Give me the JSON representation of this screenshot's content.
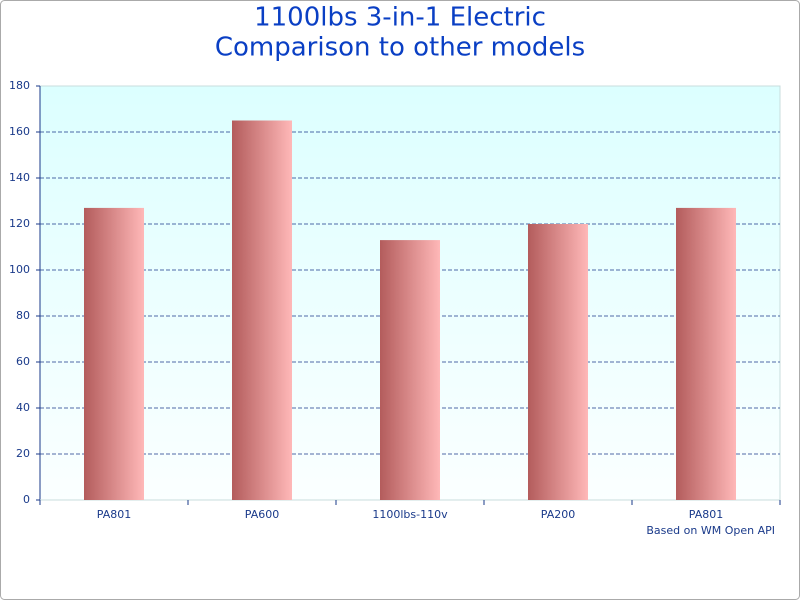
{
  "chart_data": {
    "type": "bar",
    "title": "1100lbs 3-in-1 Electric",
    "subtitle": "Comparison to other models",
    "categories": [
      "PA801",
      "PA600",
      "1100lbs-110v",
      "PA200",
      "PA801"
    ],
    "values": [
      127,
      165,
      113,
      120,
      127
    ],
    "color": "#b35c5c",
    "ylim": [
      0,
      180
    ],
    "yticks": [
      0,
      20,
      40,
      60,
      80,
      100,
      120,
      140,
      160,
      180
    ],
    "grid": true,
    "annotation": "Based on WM Open API"
  }
}
